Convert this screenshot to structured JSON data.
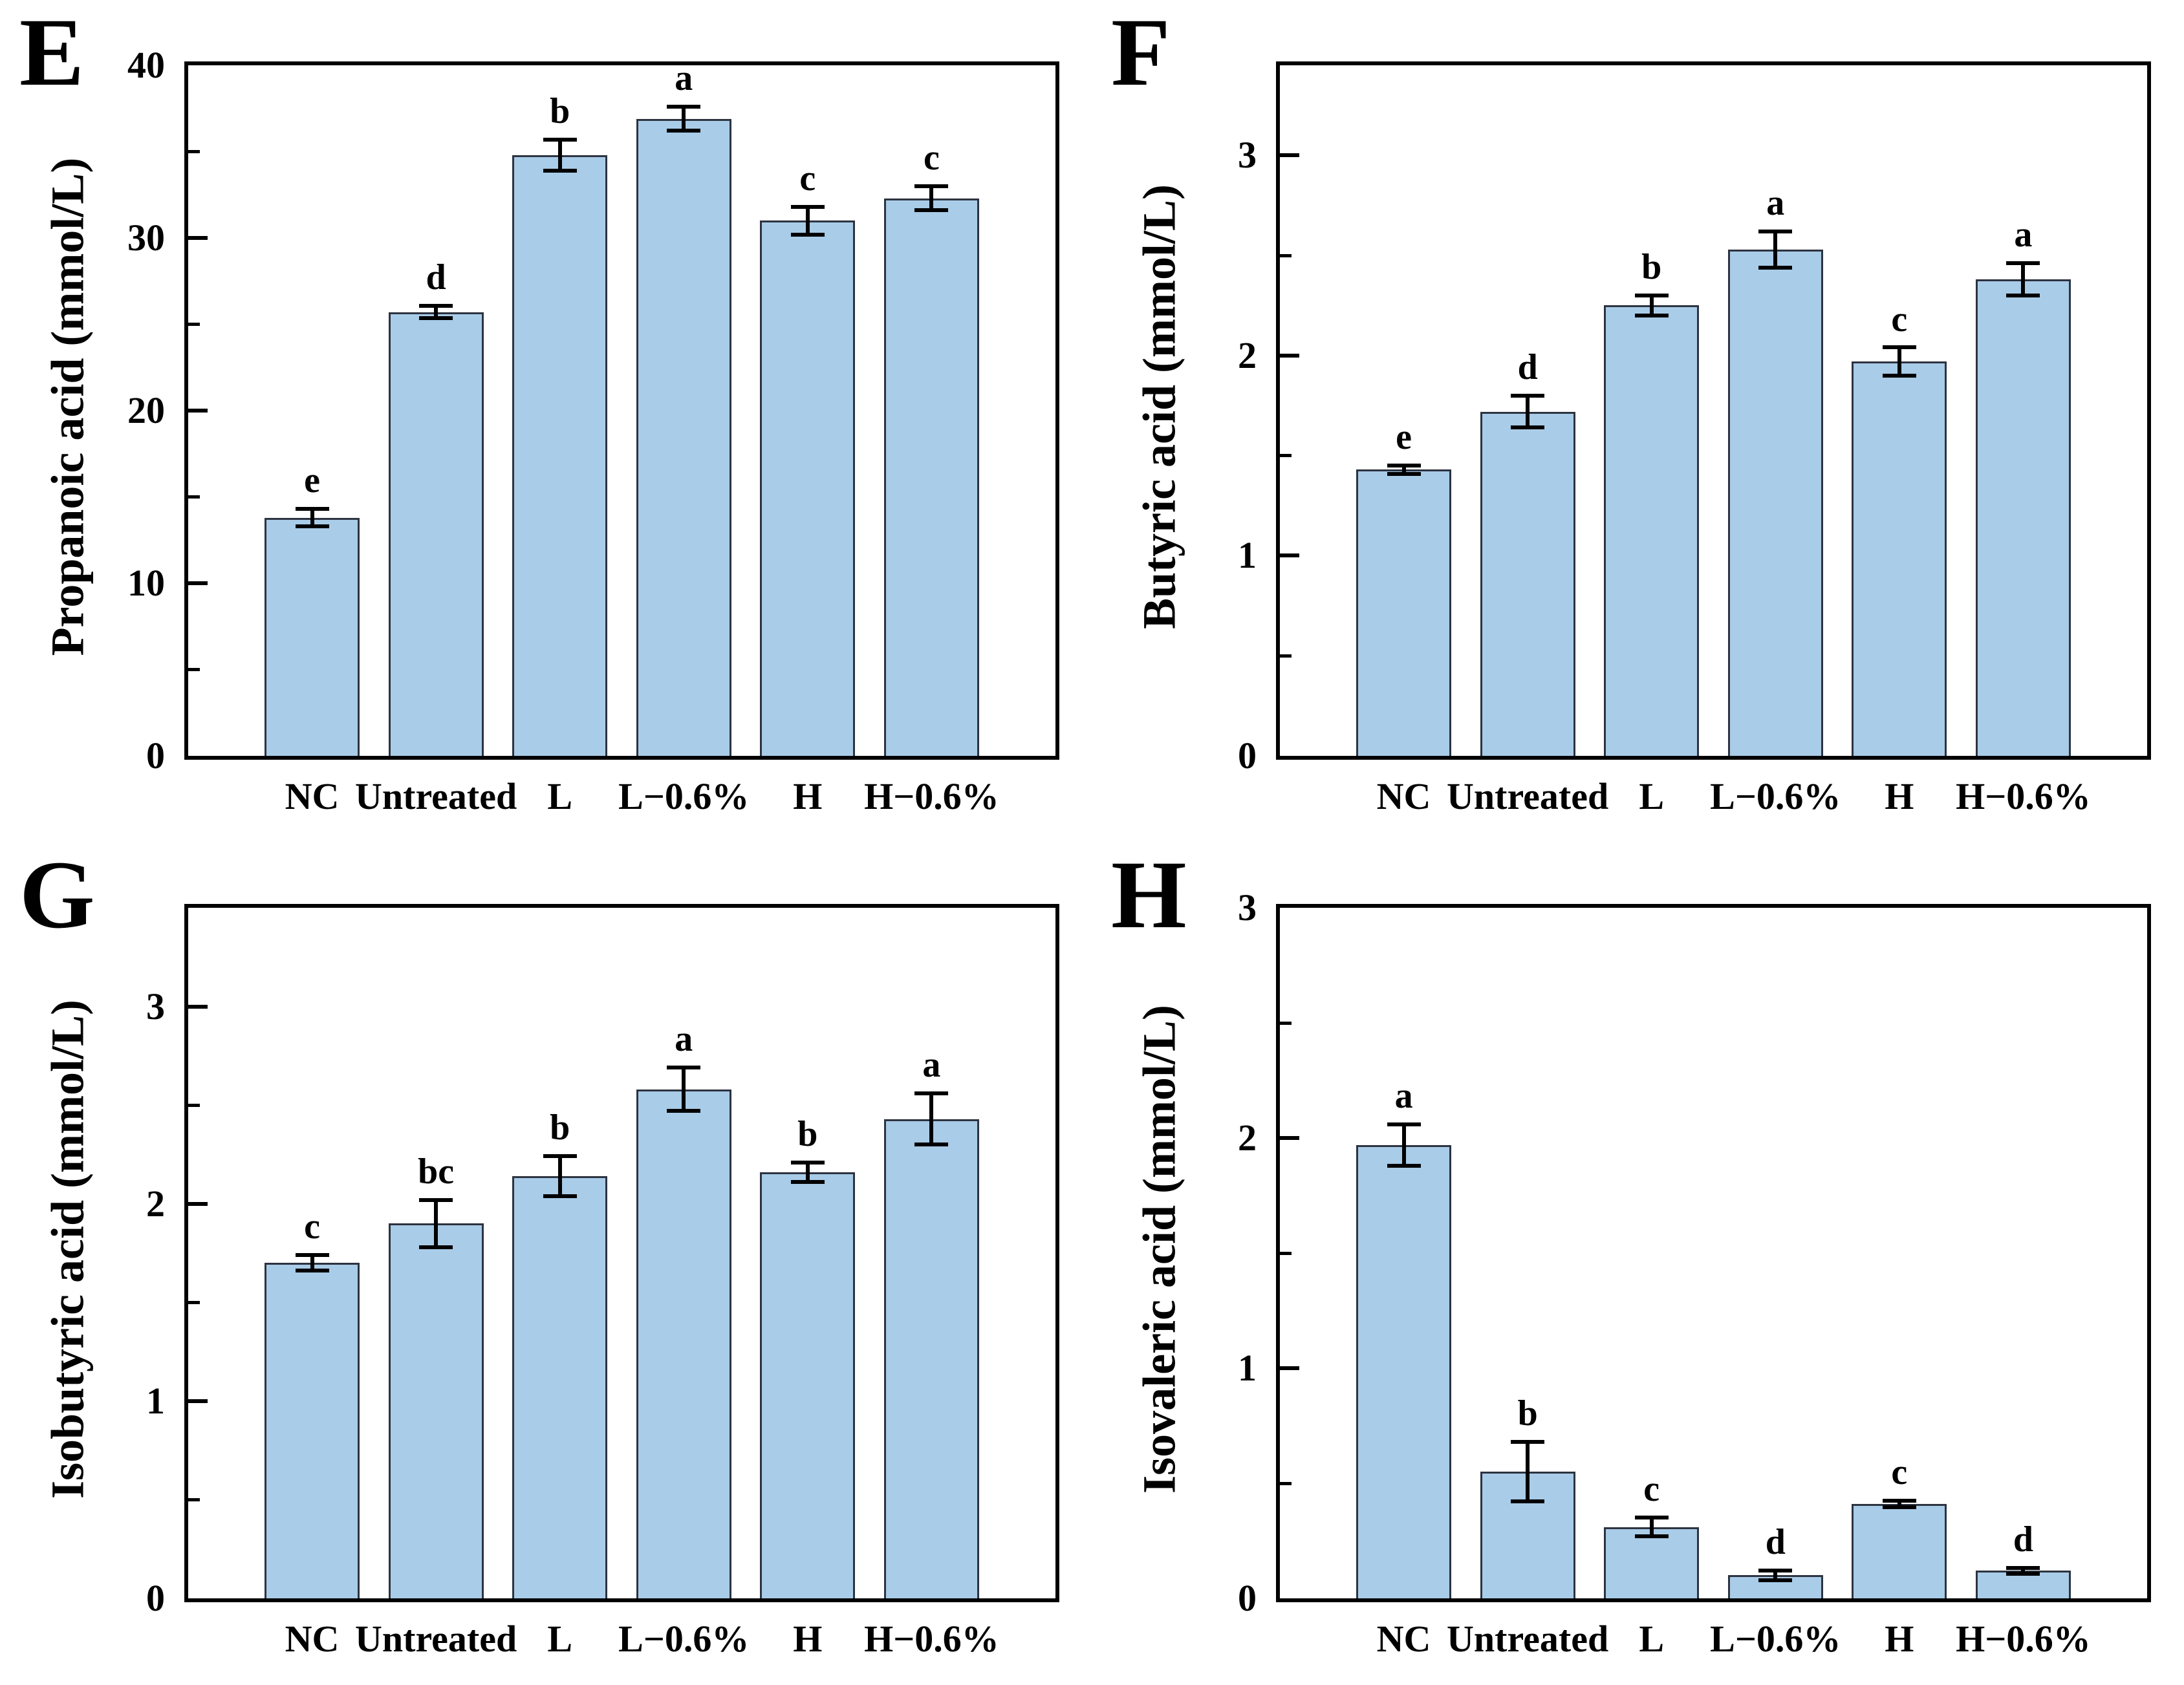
{
  "figure": {
    "style": {
      "bar_fill": "#a9cce8",
      "bar_border": "#2d3340",
      "axis_color": "#000000",
      "text_color": "#000000",
      "background": "#ffffff"
    }
  },
  "chart_data": [
    {
      "type": "bar",
      "panel_label": "E",
      "title": "",
      "xlabel": "",
      "ylabel": "Propanoic acid (mmol/L)",
      "categories": [
        "NC",
        "Untreated",
        "L",
        "L−0.6%",
        "H",
        "H−0.6%"
      ],
      "values": [
        13.8,
        25.7,
        34.8,
        36.9,
        31.0,
        32.3
      ],
      "errors": [
        0.5,
        0.35,
        0.9,
        0.7,
        0.8,
        0.7
      ],
      "sig_letters": [
        "e",
        "d",
        "b",
        "a",
        "c",
        "c"
      ],
      "yticks": [
        0,
        10,
        20,
        30,
        40
      ],
      "minor_tick_step": 5,
      "ylim": [
        0,
        40
      ],
      "grid": false,
      "legend": "none"
    },
    {
      "type": "bar",
      "panel_label": "F",
      "title": "",
      "xlabel": "",
      "ylabel": "Butyric acid (mmol/L)",
      "categories": [
        "NC",
        "Untreated",
        "L",
        "L−0.6%",
        "H",
        "H−0.6%"
      ],
      "values": [
        1.43,
        1.72,
        2.25,
        2.53,
        1.97,
        2.38
      ],
      "errors": [
        0.02,
        0.08,
        0.05,
        0.09,
        0.07,
        0.08
      ],
      "sig_letters": [
        "e",
        "d",
        "b",
        "a",
        "c",
        "a"
      ],
      "yticks": [
        0,
        1,
        2,
        3
      ],
      "minor_tick_step": 0.5,
      "ylim": [
        0,
        3.45
      ],
      "grid": false,
      "legend": "none"
    },
    {
      "type": "bar",
      "panel_label": "G",
      "title": "",
      "xlabel": "",
      "ylabel": "Isobutyric acid (mmol/L)",
      "categories": [
        "NC",
        "Untreated",
        "L",
        "L−0.6%",
        "H",
        "H−0.6%"
      ],
      "values": [
        1.7,
        1.9,
        2.14,
        2.58,
        2.16,
        2.43
      ],
      "errors": [
        0.04,
        0.12,
        0.1,
        0.11,
        0.05,
        0.13
      ],
      "sig_letters": [
        "c",
        "bc",
        "b",
        "a",
        "b",
        "a"
      ],
      "yticks": [
        0,
        1,
        2,
        3
      ],
      "minor_tick_step": 0.5,
      "ylim": [
        0,
        3.5
      ],
      "grid": false,
      "legend": "none"
    },
    {
      "type": "bar",
      "panel_label": "H",
      "title": "",
      "xlabel": "",
      "ylabel": "Isovaleric acid (mmol/L)",
      "categories": [
        "NC",
        "Untreated",
        "L",
        "L−0.6%",
        "H",
        "H−0.6%"
      ],
      "values": [
        1.97,
        0.55,
        0.31,
        0.1,
        0.41,
        0.12
      ],
      "errors": [
        0.09,
        0.13,
        0.04,
        0.02,
        0.015,
        0.012
      ],
      "sig_letters": [
        "a",
        "b",
        "c",
        "d",
        "c",
        "d"
      ],
      "yticks": [
        0,
        1,
        2,
        3
      ],
      "minor_tick_step": 0.5,
      "ylim": [
        0,
        3.0
      ],
      "grid": false,
      "legend": "none"
    }
  ]
}
